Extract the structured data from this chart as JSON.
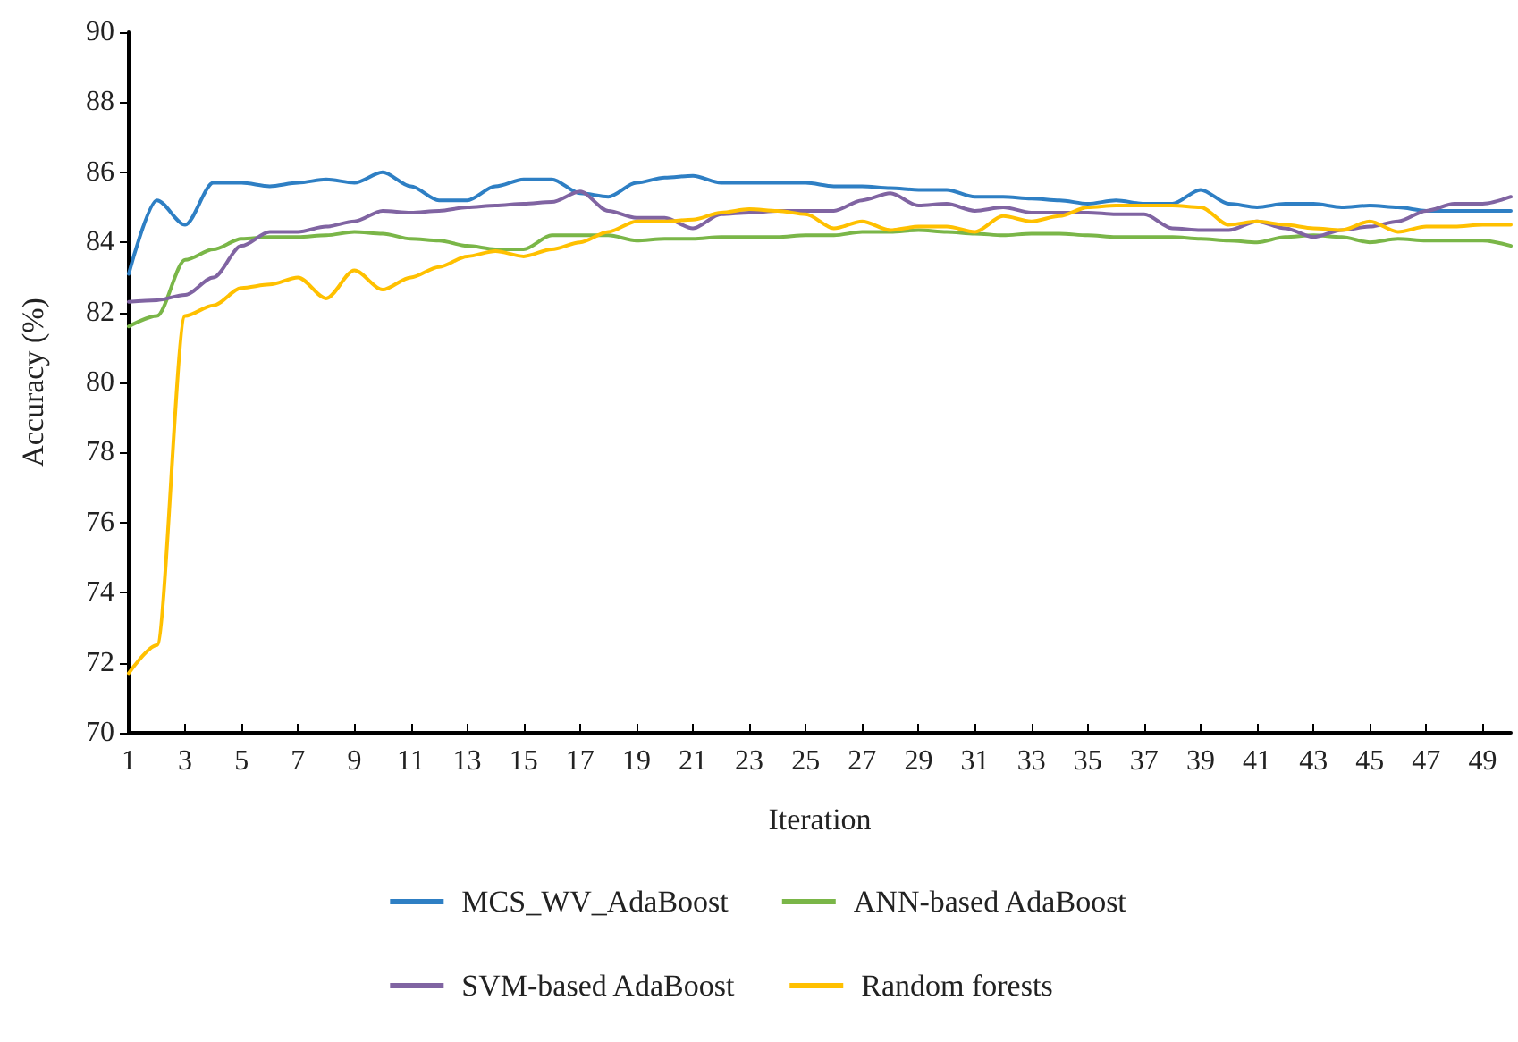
{
  "chart_data": {
    "type": "line",
    "xlabel": "Iteration",
    "ylabel": "Accuracy (%)",
    "x": [
      1,
      2,
      3,
      4,
      5,
      6,
      7,
      8,
      9,
      10,
      11,
      12,
      13,
      14,
      15,
      16,
      17,
      18,
      19,
      20,
      21,
      22,
      23,
      24,
      25,
      26,
      27,
      28,
      29,
      30,
      31,
      32,
      33,
      34,
      35,
      36,
      37,
      38,
      39,
      40,
      41,
      42,
      43,
      44,
      45,
      46,
      47,
      48,
      49,
      50
    ],
    "xlim": [
      1,
      50
    ],
    "xticks": [
      1,
      3,
      5,
      7,
      9,
      11,
      13,
      15,
      17,
      19,
      21,
      23,
      25,
      27,
      29,
      31,
      33,
      35,
      37,
      39,
      41,
      43,
      45,
      47,
      49
    ],
    "ylim": [
      70,
      90
    ],
    "yticks": [
      70,
      72,
      74,
      76,
      78,
      80,
      82,
      84,
      86,
      88,
      90
    ],
    "grid": false,
    "legend": "bottom",
    "marker": "none",
    "line_style": "solid",
    "series": [
      {
        "name": "MCS_WV_AdaBoost",
        "color": "#2e7fc4",
        "values": [
          83.1,
          85.2,
          84.5,
          85.7,
          85.7,
          85.6,
          85.7,
          85.8,
          85.7,
          86.0,
          85.6,
          85.2,
          85.2,
          85.6,
          85.8,
          85.8,
          85.4,
          85.3,
          85.7,
          85.85,
          85.9,
          85.7,
          85.7,
          85.7,
          85.7,
          85.6,
          85.6,
          85.55,
          85.5,
          85.5,
          85.3,
          85.3,
          85.25,
          85.2,
          85.1,
          85.2,
          85.1,
          85.1,
          85.5,
          85.1,
          85.0,
          85.1,
          85.1,
          85.0,
          85.05,
          85.0,
          84.9,
          84.9,
          84.9,
          84.9
        ]
      },
      {
        "name": "ANN-based AdaBoost",
        "color": "#7ab648",
        "values": [
          81.6,
          81.9,
          83.5,
          83.8,
          84.1,
          84.15,
          84.15,
          84.2,
          84.3,
          84.25,
          84.1,
          84.05,
          83.9,
          83.8,
          83.8,
          84.2,
          84.2,
          84.2,
          84.05,
          84.1,
          84.1,
          84.15,
          84.15,
          84.15,
          84.2,
          84.2,
          84.3,
          84.3,
          84.35,
          84.3,
          84.25,
          84.2,
          84.25,
          84.25,
          84.2,
          84.15,
          84.15,
          84.15,
          84.1,
          84.05,
          84.0,
          84.15,
          84.2,
          84.15,
          84.0,
          84.1,
          84.05,
          84.05,
          84.05,
          83.9
        ]
      },
      {
        "name": "SVM-based AdaBoost",
        "color": "#8064a2",
        "values": [
          82.3,
          82.35,
          82.5,
          83.0,
          83.9,
          84.3,
          84.3,
          84.45,
          84.6,
          84.9,
          84.85,
          84.9,
          85.0,
          85.05,
          85.1,
          85.15,
          85.45,
          84.9,
          84.7,
          84.7,
          84.4,
          84.8,
          84.85,
          84.9,
          84.9,
          84.9,
          85.2,
          85.4,
          85.05,
          85.1,
          84.9,
          85.0,
          84.85,
          84.85,
          84.85,
          84.8,
          84.8,
          84.4,
          84.35,
          84.35,
          84.6,
          84.4,
          84.15,
          84.35,
          84.45,
          84.6,
          84.9,
          85.1,
          85.1,
          85.3
        ]
      },
      {
        "name": "Random forests",
        "color": "#ffc000",
        "values": [
          71.7,
          72.5,
          81.9,
          82.2,
          82.7,
          82.8,
          83.0,
          82.4,
          83.2,
          82.65,
          83.0,
          83.3,
          83.6,
          83.75,
          83.6,
          83.8,
          84.0,
          84.3,
          84.6,
          84.6,
          84.65,
          84.85,
          84.95,
          84.9,
          84.8,
          84.4,
          84.6,
          84.35,
          84.45,
          84.45,
          84.3,
          84.75,
          84.6,
          84.75,
          85.0,
          85.05,
          85.05,
          85.05,
          85.0,
          84.5,
          84.6,
          84.5,
          84.4,
          84.35,
          84.6,
          84.3,
          84.45,
          84.45,
          84.5,
          84.5
        ]
      }
    ]
  }
}
